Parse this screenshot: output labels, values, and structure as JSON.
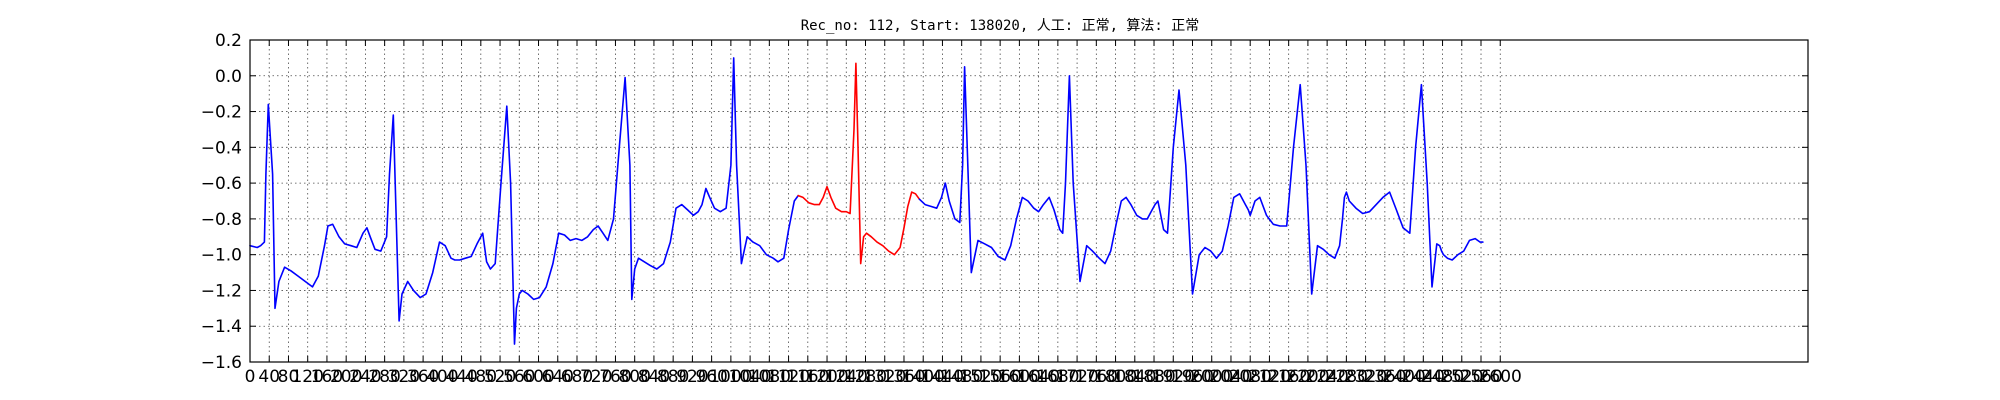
{
  "chart_data": {
    "type": "line",
    "title": "Rec_no: 112, Start: 138020, 人工: 正常, 算法: 正常",
    "xlabel": "",
    "ylabel": "",
    "xlim": [
      0,
      3240
    ],
    "ylim": [
      -1.6,
      0.2
    ],
    "grid": true,
    "yticks": [
      0.2,
      0.0,
      -0.2,
      -0.4,
      -0.6,
      -0.8,
      -1.0,
      -1.2,
      -1.4,
      -1.6
    ],
    "ytick_labels": [
      "0.2",
      "0.0",
      "−0.2",
      "−0.4",
      "−0.6",
      "−0.8",
      "−1.0",
      "−1.2",
      "−1.4",
      "−1.6"
    ],
    "xticks": [
      0,
      40,
      80,
      120,
      160,
      200,
      240,
      280,
      320,
      360,
      400,
      440,
      480,
      520,
      560,
      600,
      640,
      680,
      720,
      760,
      800,
      840,
      880,
      920,
      960,
      1000,
      1040,
      1080,
      1120,
      1160,
      1200,
      1240,
      1280,
      1320,
      1360,
      1400,
      1440,
      1480,
      1520,
      1560,
      1600,
      1640,
      1680,
      1720,
      1760,
      1800,
      1840,
      1880,
      1920,
      1960,
      2000,
      2040,
      2080,
      2120,
      2160,
      2200,
      2240,
      2280,
      2320,
      2360,
      2400,
      2440,
      2480,
      2520,
      2560,
      2600
    ],
    "xtick_labels": [
      "0",
      "40",
      "80",
      "120",
      "160",
      "200",
      "240",
      "280",
      "320",
      "360",
      "400",
      "440",
      "480",
      "520",
      "560",
      "600",
      "640",
      "680",
      "720",
      "760",
      "800",
      "840",
      "880",
      "920",
      "960",
      "1000",
      "1040",
      "1080",
      "1120",
      "1160",
      "1200",
      "1240",
      "1280",
      "1320",
      "1360",
      "1400",
      "1440",
      "1480",
      "1520",
      "1560",
      "1600",
      "1640",
      "1680",
      "1720",
      "1760",
      "1800",
      "1840",
      "1880",
      "1920",
      "1960",
      "2000",
      "2040",
      "2080",
      "2120",
      "2160",
      "2200",
      "2240",
      "2280",
      "2320",
      "2360",
      "2400",
      "2440",
      "2480",
      "2520",
      "2560",
      "2600"
    ],
    "series": [
      {
        "color": "#0000ff",
        "x": [
          0,
          15,
          22,
          30,
          33,
          38,
          47,
          52,
          60,
          72,
          85,
          100,
          115,
          130,
          142,
          155,
          162,
          172,
          185,
          197,
          210,
          222,
          235,
          243,
          250,
          260,
          272,
          284,
          290,
          298,
          302,
          310,
          316,
          328,
          340,
          354,
          366,
          380,
          394,
          406,
          418,
          426,
          436,
          448,
          460,
          472,
          484,
          492,
          500,
          510,
          522,
          534,
          542,
          550,
          554,
          560,
          566,
          578,
          590,
          602,
          616,
          630,
          642,
          654,
          666,
          678,
          690,
          702,
          714,
          724,
          734,
          744,
          756,
          768,
          780,
          790,
          794,
          800,
          808,
          820,
          832,
          846,
          860,
          874,
          886,
          898,
          910,
          922,
          932,
          940,
          948,
          956,
          966,
          978,
          990,
          1000,
          1006,
          1012,
          1022,
          1034,
          1046,
          1060,
          1074,
          1088,
          1098,
          1110,
          1120,
          1132,
          1140
        ],
        "y": [
          -0.95,
          -0.96,
          -0.95,
          -0.93,
          -0.55,
          -0.16,
          -0.55,
          -1.3,
          -1.15,
          -1.07,
          -1.09,
          -1.12,
          -1.15,
          -1.18,
          -1.12,
          -0.95,
          -0.84,
          -0.83,
          -0.9,
          -0.94,
          -0.95,
          -0.96,
          -0.88,
          -0.85,
          -0.9,
          -0.97,
          -0.98,
          -0.9,
          -0.55,
          -0.22,
          -0.6,
          -1.37,
          -1.22,
          -1.15,
          -1.2,
          -1.24,
          -1.22,
          -1.1,
          -0.93,
          -0.95,
          -1.02,
          -1.03,
          -1.03,
          -1.02,
          -1.01,
          -0.94,
          -0.88,
          -1.04,
          -1.08,
          -1.05,
          -0.6,
          -0.17,
          -0.6,
          -1.5,
          -1.3,
          -1.22,
          -1.2,
          -1.22,
          -1.25,
          -1.24,
          -1.18,
          -1.05,
          -0.88,
          -0.89,
          -0.92,
          -0.91,
          -0.92,
          -0.9,
          -0.86,
          -0.84,
          -0.88,
          -0.92,
          -0.8,
          -0.4,
          -0.01,
          -0.5,
          -1.25,
          -1.08,
          -1.02,
          -1.04,
          -1.06,
          -1.08,
          -1.05,
          -0.93,
          -0.74,
          -0.72,
          -0.75,
          -0.78,
          -0.76,
          -0.72,
          -0.63,
          -0.68,
          -0.74,
          -0.76,
          -0.74,
          -0.5,
          0.1,
          -0.5,
          -1.05,
          -0.9,
          -0.93,
          -0.95,
          -1.0,
          -1.02,
          -1.04,
          -1.02,
          -0.86,
          -0.7,
          -0.67
        ]
      },
      {
        "color": "#ff0000",
        "x": [
          1140,
          1150,
          1162,
          1174,
          1184,
          1192,
          1200,
          1208,
          1218,
          1230,
          1240,
          1248,
          1256,
          1260,
          1264,
          1270,
          1276,
          1282,
          1292,
          1304,
          1316,
          1328,
          1340,
          1352,
          1360,
          1368,
          1376,
          1384,
          1392
        ],
        "y": [
          -0.67,
          -0.68,
          -0.71,
          -0.72,
          -0.72,
          -0.68,
          -0.62,
          -0.68,
          -0.74,
          -0.76,
          -0.76,
          -0.77,
          -0.3,
          0.07,
          -0.35,
          -1.05,
          -0.9,
          -0.88,
          -0.9,
          -0.93,
          -0.95,
          -0.98,
          -1.0,
          -0.96,
          -0.85,
          -0.73,
          -0.65,
          -0.66,
          -0.69
        ]
      },
      {
        "color": "#0000ff",
        "x": [
          1392,
          1404,
          1416,
          1428,
          1438,
          1446,
          1454,
          1466,
          1476,
          1482,
          1486,
          1494,
          1500,
          1514,
          1528,
          1542,
          1556,
          1570,
          1582,
          1594,
          1606,
          1618,
          1630,
          1640,
          1650,
          1662,
          1672,
          1684,
          1690,
          1696,
          1704,
          1712,
          1726,
          1740,
          1752,
          1766,
          1778,
          1790,
          1802,
          1812,
          1822,
          1832,
          1844,
          1856,
          1866,
          1874,
          1882,
          1888,
          1894,
          1900,
          1908,
          1920,
          1932,
          1946,
          1960,
          1974,
          1986,
          1998,
          2010,
          2022,
          2034,
          2046,
          2058,
          2070,
          2076,
          2080,
          2084,
          2090,
          2100,
          2114,
          2128,
          2142,
          2156,
          2170,
          2184,
          2196,
          2208,
          2220,
          2232,
          2244,
          2256,
          2266,
          2272,
          2276,
          2280,
          2286,
          2300,
          2314,
          2328,
          2342,
          2356,
          2370,
          2384,
          2398,
          2412,
          2424,
          2436,
          2448,
          2458,
          2468,
          2474,
          2478,
          2482,
          2490,
          2500,
          2512,
          2524,
          2536,
          2548,
          2558,
          2564
        ],
        "y": [
          -0.69,
          -0.72,
          -0.73,
          -0.74,
          -0.68,
          -0.6,
          -0.7,
          -0.8,
          -0.82,
          -0.5,
          0.05,
          -0.6,
          -1.1,
          -0.92,
          -0.94,
          -0.96,
          -1.01,
          -1.03,
          -0.95,
          -0.8,
          -0.68,
          -0.7,
          -0.74,
          -0.76,
          -0.72,
          -0.68,
          -0.75,
          -0.86,
          -0.88,
          -0.6,
          0.0,
          -0.6,
          -1.15,
          -0.95,
          -0.98,
          -1.02,
          -1.05,
          -0.98,
          -0.82,
          -0.7,
          -0.68,
          -0.72,
          -0.78,
          -0.8,
          -0.8,
          -0.76,
          -0.72,
          -0.7,
          -0.78,
          -0.86,
          -0.88,
          -0.4,
          -0.08,
          -0.5,
          -1.22,
          -1.0,
          -0.96,
          -0.98,
          -1.02,
          -0.98,
          -0.84,
          -0.68,
          -0.66,
          -0.72,
          -0.75,
          -0.78,
          -0.75,
          -0.7,
          -0.68,
          -0.78,
          -0.83,
          -0.84,
          -0.84,
          -0.4,
          -0.05,
          -0.5,
          -1.22,
          -0.95,
          -0.97,
          -1.0,
          -1.02,
          -0.95,
          -0.8,
          -0.68,
          -0.65,
          -0.7,
          -0.74,
          -0.77,
          -0.76,
          -0.72,
          -0.68,
          -0.65,
          -0.75,
          -0.85,
          -0.88,
          -0.4,
          -0.05,
          -0.6,
          -1.18,
          -0.94,
          -0.95,
          -0.98,
          -1.0,
          -1.02,
          -1.03,
          -1.0,
          -0.98,
          -0.92,
          -0.91,
          -0.93,
          -0.93
        ]
      }
    ]
  }
}
